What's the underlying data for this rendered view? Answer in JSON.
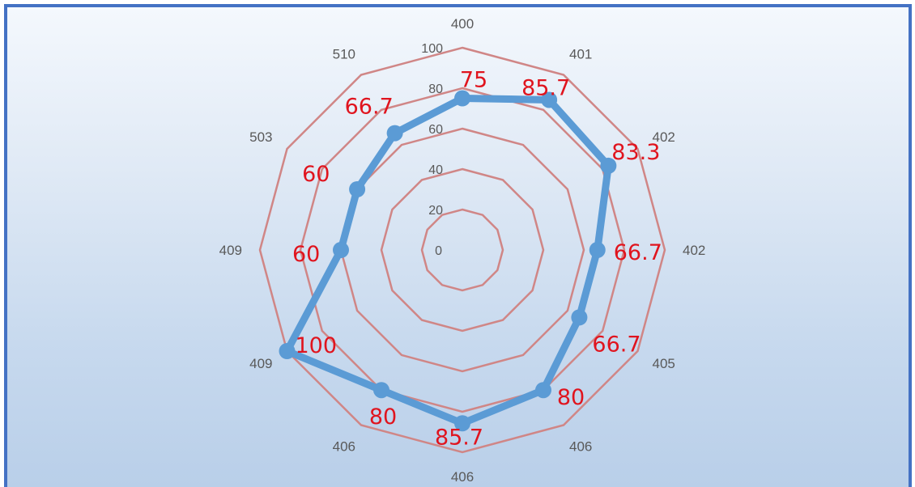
{
  "chart_data": {
    "type": "radar",
    "categories": [
      "400",
      "401",
      "402",
      "402",
      "405",
      "406",
      "406",
      "406",
      "409",
      "409",
      "503",
      "510"
    ],
    "series": [
      {
        "values": [
          75,
          85.7,
          83.3,
          66.7,
          66.7,
          80,
          85.7,
          80,
          100,
          60,
          60,
          66.7
        ],
        "labels": [
          "75",
          "85.7",
          "83.3",
          "66.7",
          "66.7",
          "80",
          "85.7",
          "80",
          "100",
          "60",
          "60",
          "66.7"
        ]
      }
    ],
    "rlim": [
      0,
      100
    ],
    "ticks": [
      "0",
      "20",
      "40",
      "60",
      "80",
      "100"
    ],
    "tick_values": [
      0,
      20,
      40,
      60,
      80,
      100
    ],
    "grid": true,
    "colors": {
      "grid": "#d08686",
      "series": "#5b9bd5",
      "data_label": "#e0141e",
      "frame": "#4472c4"
    }
  }
}
